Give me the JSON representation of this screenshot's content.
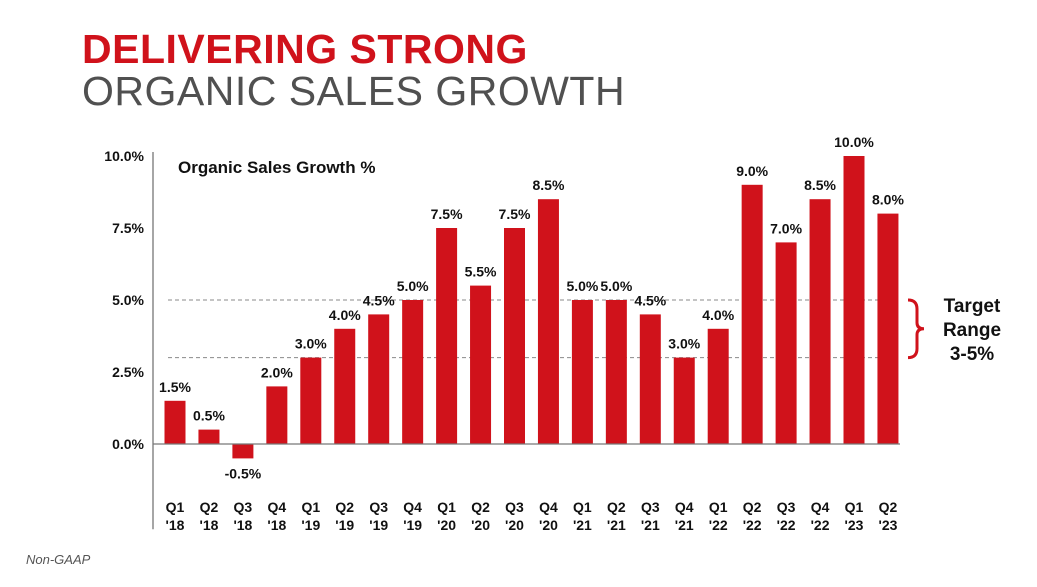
{
  "header": {
    "title_line1": "DELIVERING STRONG",
    "title_line2": "ORGANIC SALES GROWTH"
  },
  "footnote": "Non-GAAP",
  "colors": {
    "bar": "#d0121b",
    "title_accent": "#d0121b",
    "title_secondary": "#505050",
    "text": "#111111"
  },
  "chart_data": {
    "type": "bar",
    "title": "Organic Sales Growth %",
    "categories": [
      [
        "Q1",
        "'18"
      ],
      [
        "Q2",
        "'18"
      ],
      [
        "Q3",
        "'18"
      ],
      [
        "Q4",
        "'18"
      ],
      [
        "Q1",
        "'19"
      ],
      [
        "Q2",
        "'19"
      ],
      [
        "Q3",
        "'19"
      ],
      [
        "Q4",
        "'19"
      ],
      [
        "Q1",
        "'20"
      ],
      [
        "Q2",
        "'20"
      ],
      [
        "Q3",
        "'20"
      ],
      [
        "Q4",
        "'20"
      ],
      [
        "Q1",
        "'21"
      ],
      [
        "Q2",
        "'21"
      ],
      [
        "Q3",
        "'21"
      ],
      [
        "Q4",
        "'21"
      ],
      [
        "Q1",
        "'22"
      ],
      [
        "Q2",
        "'22"
      ],
      [
        "Q3",
        "'22"
      ],
      [
        "Q4",
        "'22"
      ],
      [
        "Q1",
        "'23"
      ],
      [
        "Q2",
        "'23"
      ]
    ],
    "values": [
      1.5,
      0.5,
      -0.5,
      2.0,
      3.0,
      4.0,
      4.5,
      5.0,
      7.5,
      5.5,
      7.5,
      8.5,
      5.0,
      5.0,
      4.5,
      3.0,
      4.0,
      9.0,
      7.0,
      8.5,
      10.0,
      8.0
    ],
    "data_labels": [
      "1.5%",
      "0.5%",
      "-0.5%",
      "2.0%",
      "3.0%",
      "4.0%",
      "4.5%",
      "5.0%",
      "7.5%",
      "5.5%",
      "7.5%",
      "8.5%",
      "5.0%",
      "5.0%",
      "4.5%",
      "3.0%",
      "4.0%",
      "9.0%",
      "7.0%",
      "8.5%",
      "10.0%",
      "8.0%"
    ],
    "y_ticks": [
      {
        "value": 0.0,
        "label": "0.0%"
      },
      {
        "value": 2.5,
        "label": "2.5%"
      },
      {
        "value": 5.0,
        "label": "5.0%"
      },
      {
        "value": 7.5,
        "label": "7.5%"
      },
      {
        "value": 10.0,
        "label": "10.0%"
      }
    ],
    "ylim": [
      -1.5,
      10.0
    ],
    "target_range": {
      "low": 3.0,
      "high": 5.0,
      "label_lines": [
        "Target",
        "Range",
        "3-5%"
      ]
    },
    "grid": false,
    "legend": "none"
  }
}
